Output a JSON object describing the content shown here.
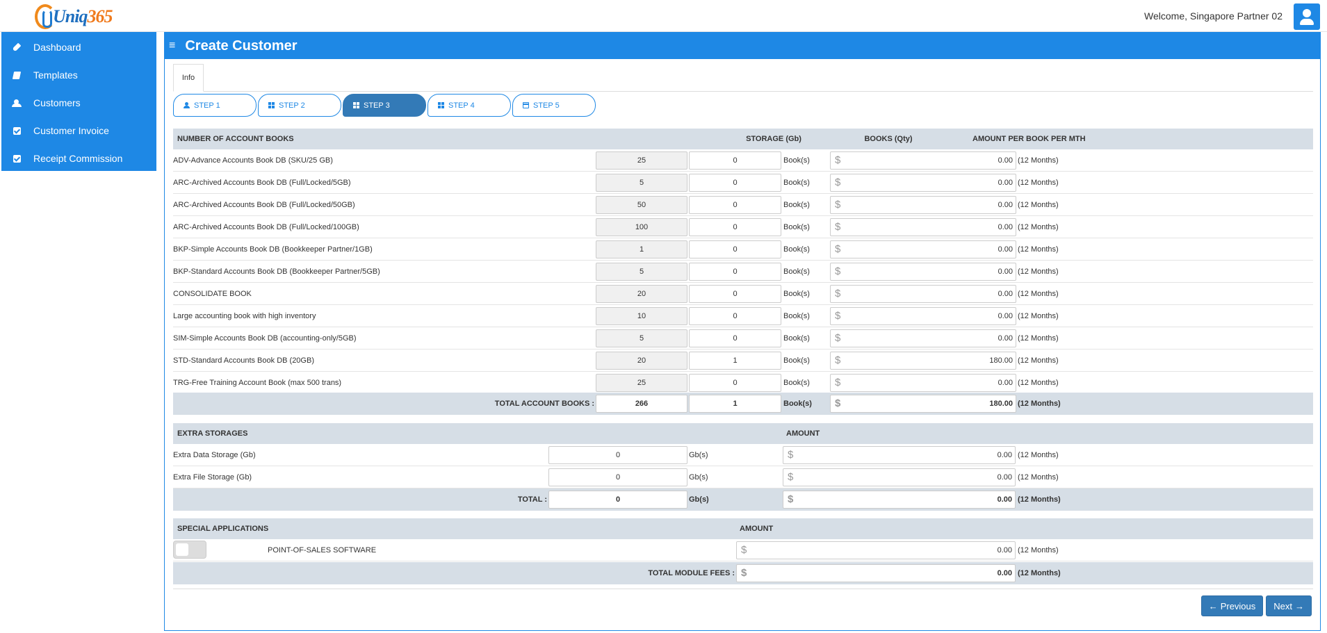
{
  "header": {
    "logo_text_1": "Uniq",
    "logo_text_2": "365",
    "welcome": "Welcome, Singapore Partner 02"
  },
  "sidebar": {
    "items": [
      {
        "label": "Dashboard",
        "icon": "rocket-icon"
      },
      {
        "label": "Templates",
        "icon": "book-icon"
      },
      {
        "label": "Customers",
        "icon": "users-icon"
      },
      {
        "label": "Customer Invoice",
        "icon": "check-square-icon"
      },
      {
        "label": "Receipt Commission",
        "icon": "check-square-icon"
      }
    ]
  },
  "page": {
    "title": "Create Customer",
    "menu_glyph": "≡"
  },
  "tabs": {
    "info": "Info"
  },
  "steps": [
    {
      "label": "STEP 1",
      "icon": "user-icon"
    },
    {
      "label": "STEP 2",
      "icon": "grid-icon"
    },
    {
      "label": "STEP 3",
      "icon": "grid-icon",
      "active": true
    },
    {
      "label": "STEP 4",
      "icon": "grid-icon"
    },
    {
      "label": "STEP 5",
      "icon": "card-icon"
    }
  ],
  "books": {
    "headers": {
      "name": "NUMBER OF ACCOUNT BOOKS",
      "storage": "STORAGE (Gb)",
      "books": "BOOKS (Qty)",
      "amount": "AMOUNT PER BOOK PER MTH"
    },
    "unit": "Book(s)",
    "period": "(12 Months)",
    "rows": [
      {
        "name": "ADV-Advance Accounts Book DB (SKU/25 GB)",
        "storage": "25",
        "qty": "0",
        "amount": "0.00"
      },
      {
        "name": "ARC-Archived Accounts Book DB (Full/Locked/5GB)",
        "storage": "5",
        "qty": "0",
        "amount": "0.00"
      },
      {
        "name": "ARC-Archived Accounts Book DB (Full/Locked/50GB)",
        "storage": "50",
        "qty": "0",
        "amount": "0.00"
      },
      {
        "name": "ARC-Archived Accounts Book DB (Full/Locked/100GB)",
        "storage": "100",
        "qty": "0",
        "amount": "0.00"
      },
      {
        "name": "BKP-Simple Accounts Book DB (Bookkeeper Partner/1GB)",
        "storage": "1",
        "qty": "0",
        "amount": "0.00"
      },
      {
        "name": "BKP-Standard Accounts Book DB (Bookkeeper Partner/5GB)",
        "storage": "5",
        "qty": "0",
        "amount": "0.00"
      },
      {
        "name": "CONSOLIDATE BOOK",
        "storage": "20",
        "qty": "0",
        "amount": "0.00"
      },
      {
        "name": "Large accounting book with high inventory",
        "storage": "10",
        "qty": "0",
        "amount": "0.00"
      },
      {
        "name": "SIM-Simple Accounts Book DB (accounting-only/5GB)",
        "storage": "5",
        "qty": "0",
        "amount": "0.00"
      },
      {
        "name": "STD-Standard Accounts Book DB (20GB)",
        "storage": "20",
        "qty": "1",
        "amount": "180.00"
      },
      {
        "name": "TRG-Free Training Account Book (max 500 trans)",
        "storage": "25",
        "qty": "0",
        "amount": "0.00"
      }
    ],
    "total": {
      "label": "TOTAL ACCOUNT BOOKS :",
      "storage": "266",
      "qty": "1",
      "unit": "Book(s)",
      "amount": "180.00",
      "period": "(12 Months)"
    }
  },
  "storages": {
    "headers": {
      "name": "EXTRA STORAGES",
      "amount": "AMOUNT"
    },
    "unit": "Gb(s)",
    "period": "(12 Months)",
    "rows": [
      {
        "name": "Extra Data Storage (Gb)",
        "qty": "0",
        "amount": "0.00"
      },
      {
        "name": "Extra File Storage (Gb)",
        "qty": "0",
        "amount": "0.00"
      }
    ],
    "total": {
      "label": "TOTAL :",
      "qty": "0",
      "unit": "Gb(s)",
      "amount": "0.00",
      "period": "(12 Months)"
    }
  },
  "special": {
    "headers": {
      "name": "SPECIAL APPLICATIONS",
      "amount": "AMOUNT"
    },
    "row": {
      "name": "POINT-OF-SALES SOFTWARE",
      "amount": "0.00",
      "period": "(12 Months)",
      "enabled": false
    },
    "total": {
      "label": "TOTAL MODULE FEES :",
      "amount": "0.00",
      "period": "(12 Months)"
    }
  },
  "currency": "$",
  "buttons": {
    "previous": "Previous",
    "next": "Next"
  }
}
